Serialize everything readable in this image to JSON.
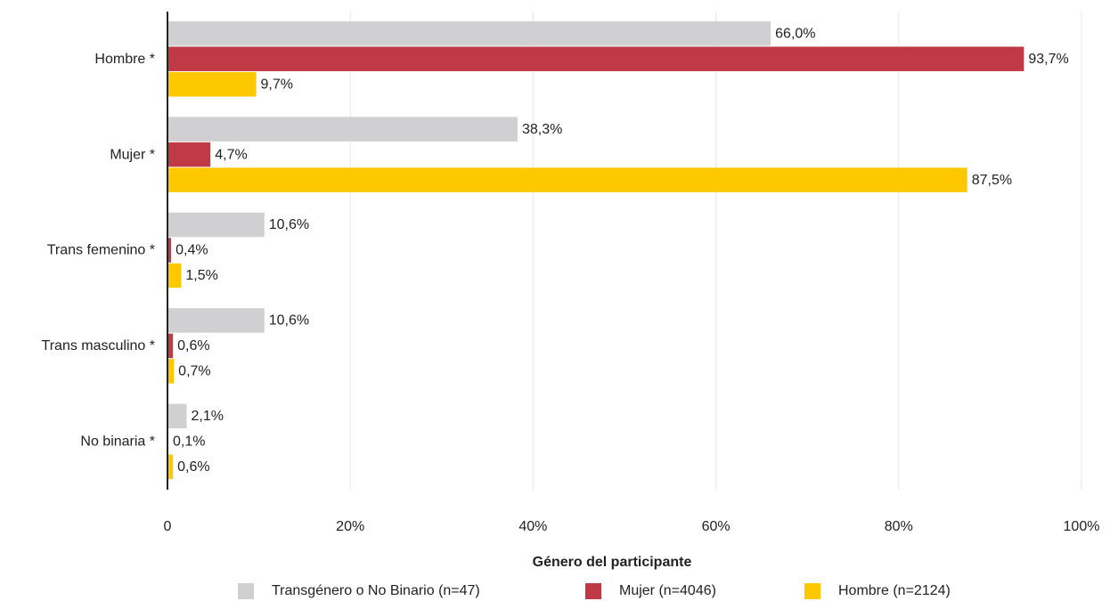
{
  "chart_data": {
    "type": "bar",
    "orientation": "horizontal",
    "categories": [
      "Hombre *",
      "Mujer *",
      "Trans femenino *",
      "Trans masculino *",
      "No binaria *"
    ],
    "series": [
      {
        "name": "Transgénero o No Binario (n=47)",
        "color": "#d0d0d2",
        "values": [
          66.0,
          38.3,
          10.6,
          10.6,
          2.1
        ],
        "value_labels": [
          "66,0%",
          "38,3%",
          "10,6%",
          "10,6%",
          "2,1%"
        ]
      },
      {
        "name": "Mujer (n=4046)",
        "color": "#c03a45",
        "values": [
          93.7,
          4.7,
          0.4,
          0.6,
          0.1
        ],
        "value_labels": [
          "93,7%",
          "4,7%",
          "0,4%",
          "0,6%",
          "0,1%"
        ]
      },
      {
        "name": "Hombre  (n=2124)",
        "color": "#fdc800",
        "values": [
          9.7,
          87.5,
          1.5,
          0.7,
          0.6
        ],
        "value_labels": [
          "9,7%",
          "87,5%",
          "1,5%",
          "0,7%",
          "0,6%"
        ]
      }
    ],
    "xlim": [
      0,
      100
    ],
    "xticks": [
      0,
      {
        "value": 20,
        "label": "20%"
      },
      {
        "value": 40,
        "label": "40%"
      },
      {
        "value": 60,
        "label": "60%"
      },
      {
        "value": 80,
        "label": "80%"
      },
      {
        "value": 100,
        "label": "100%"
      }
    ],
    "grid": true,
    "legend_title": "Género del participante",
    "legend": "bottom"
  }
}
